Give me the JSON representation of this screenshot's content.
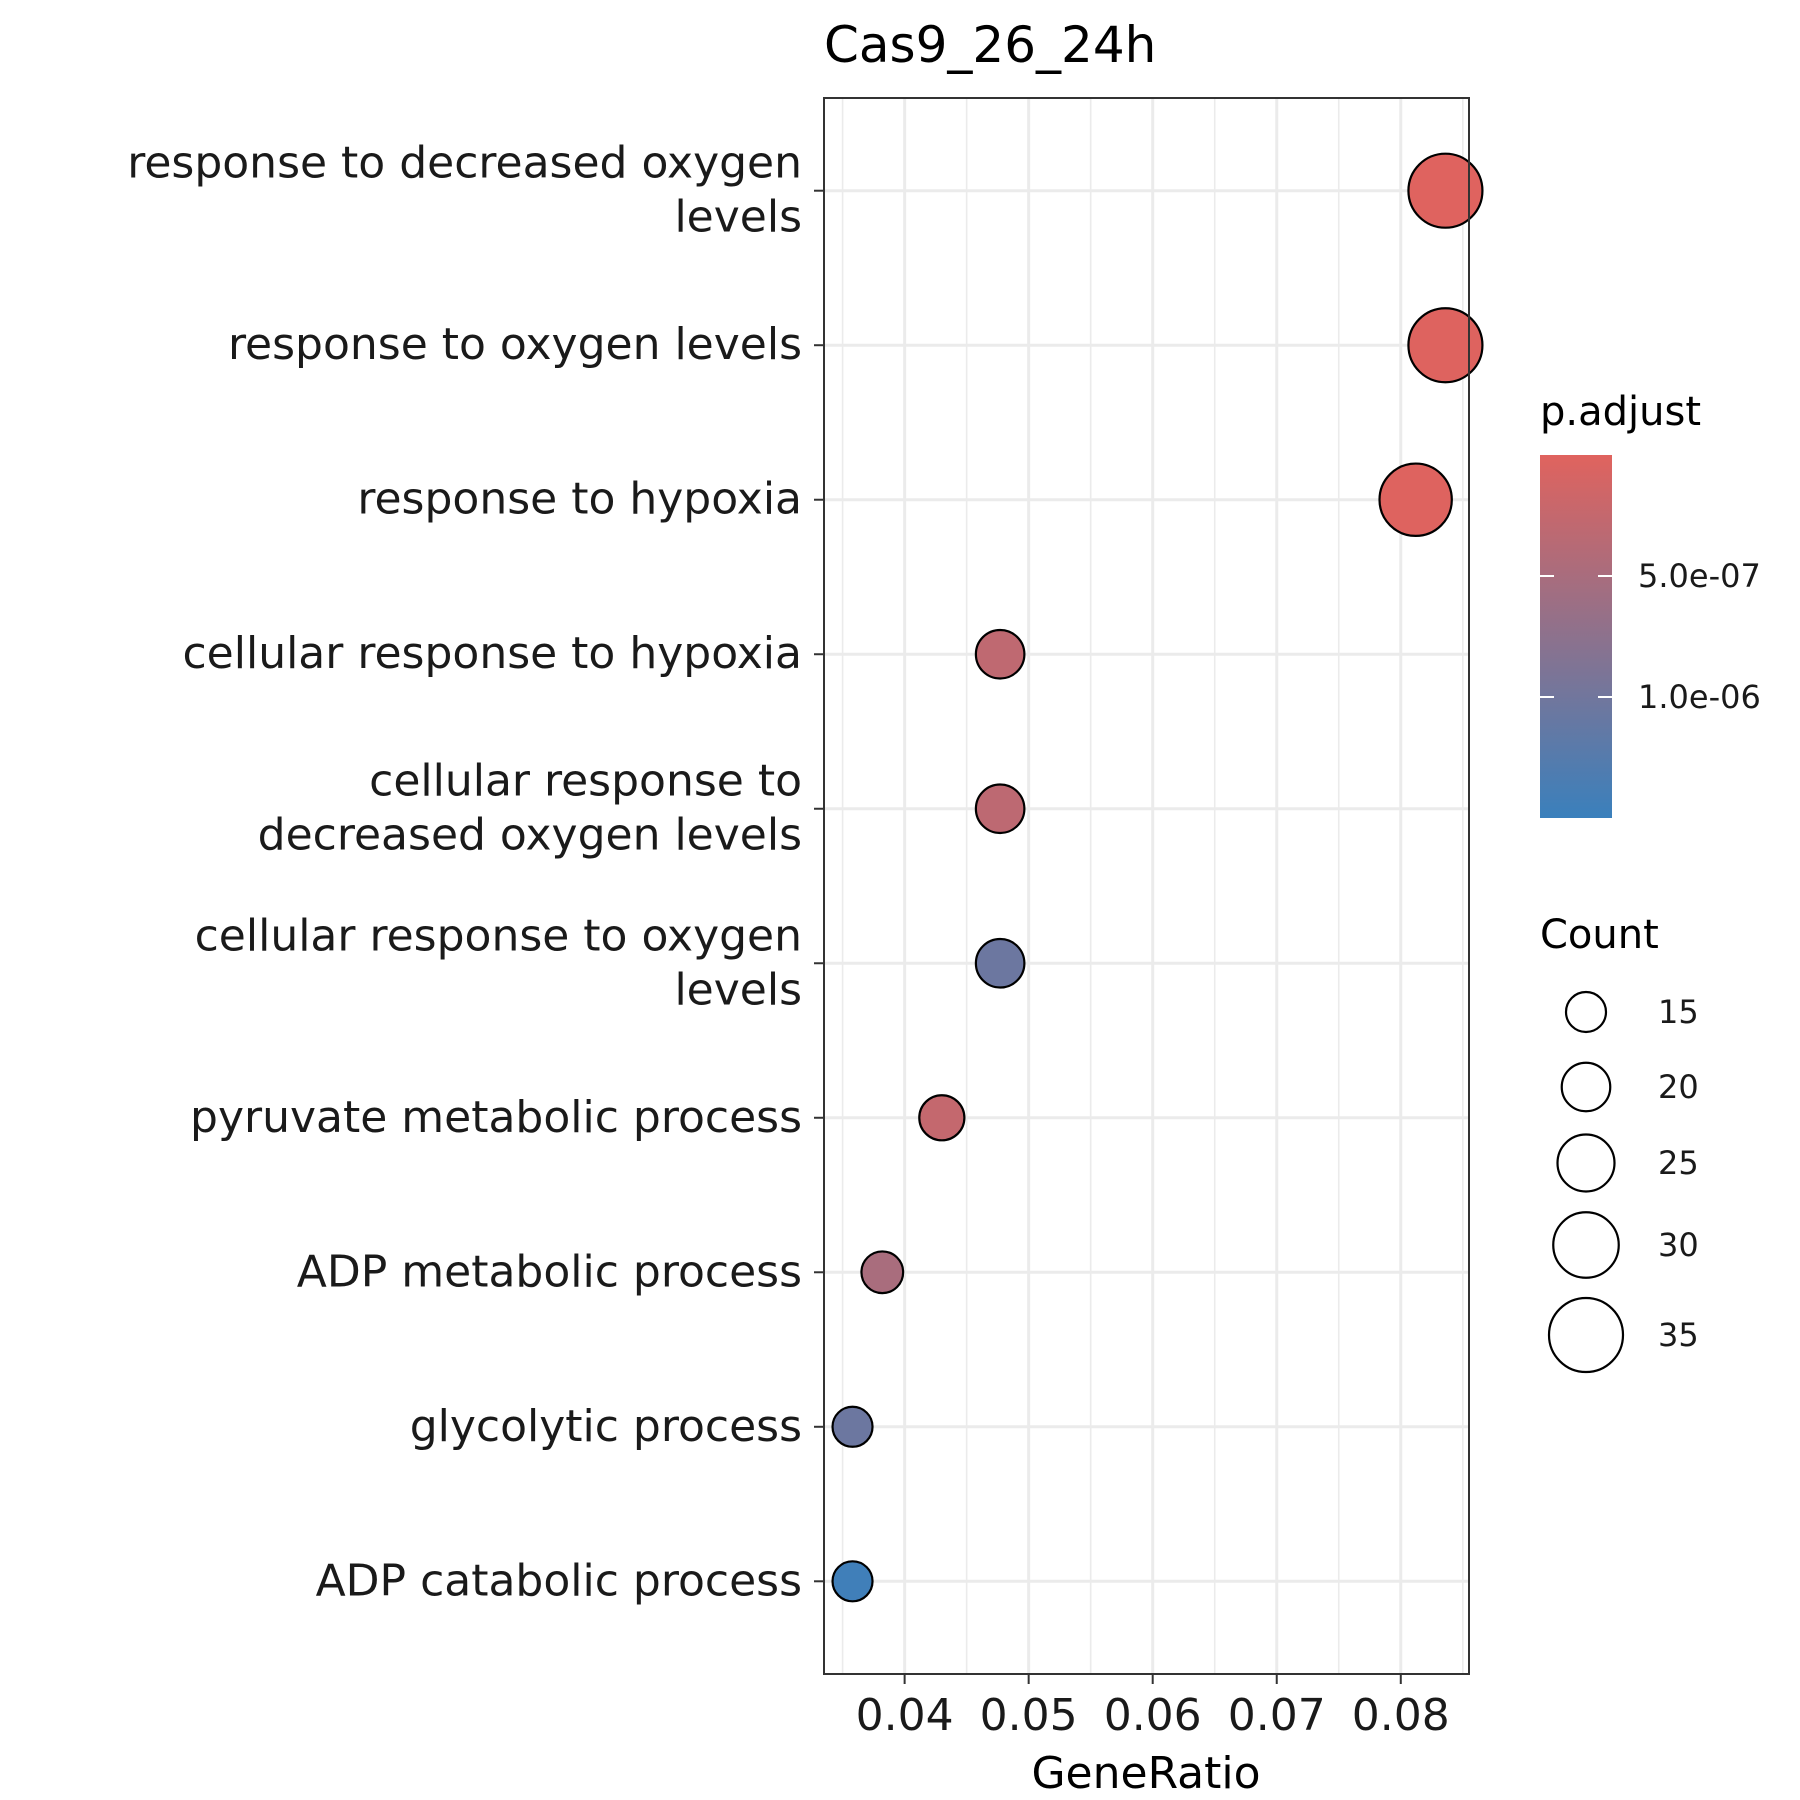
{
  "chart_data": {
    "type": "scatter",
    "title": "Cas9_26_24h",
    "xlabel": "GeneRatio",
    "ylabel": "",
    "xlim": [
      0.0335,
      0.0855
    ],
    "xticks": [
      "0.04",
      "0.05",
      "0.06",
      "0.07",
      "0.08"
    ],
    "xtick_values": [
      0.04,
      0.05,
      0.06,
      0.07,
      0.08
    ],
    "grid": true,
    "categories": [
      [
        "response to decreased oxygen",
        "levels"
      ],
      [
        "response to oxygen levels"
      ],
      [
        "response to hypoxia"
      ],
      [
        "cellular response to hypoxia"
      ],
      [
        "cellular response to",
        "decreased oxygen levels"
      ],
      [
        "cellular response to oxygen",
        "levels"
      ],
      [
        "pyruvate metabolic process"
      ],
      [
        "ADP metabolic process"
      ],
      [
        "glycolytic process"
      ],
      [
        "ADP catabolic process"
      ]
    ],
    "points": [
      {
        "gene_ratio": 0.0836,
        "count": 35,
        "p_adjust": 1e-08
      },
      {
        "gene_ratio": 0.0836,
        "count": 35,
        "p_adjust": 1.5e-08
      },
      {
        "gene_ratio": 0.0812,
        "count": 34,
        "p_adjust": 2e-08
      },
      {
        "gene_ratio": 0.0477,
        "count": 20,
        "p_adjust": 3e-07
      },
      {
        "gene_ratio": 0.0477,
        "count": 20,
        "p_adjust": 3.2e-07
      },
      {
        "gene_ratio": 0.0477,
        "count": 20,
        "p_adjust": 1.05e-06
      },
      {
        "gene_ratio": 0.043,
        "count": 18,
        "p_adjust": 2.5e-07
      },
      {
        "gene_ratio": 0.0382,
        "count": 16,
        "p_adjust": 5e-07
      },
      {
        "gene_ratio": 0.0358,
        "count": 15,
        "p_adjust": 1.05e-06
      },
      {
        "gene_ratio": 0.0358,
        "count": 15,
        "p_adjust": 1.45e-06
      }
    ],
    "color_legend": {
      "title": "p.adjust",
      "range": [
        0.0,
        1.5e-06
      ],
      "low_color": "#e0635e",
      "high_color": "#3a80bc",
      "breaks": [
        5e-07,
        1e-06
      ],
      "labels": [
        "5.0e-07",
        "1.0e-06"
      ]
    },
    "size_legend": {
      "title": "Count",
      "range": [
        15,
        35
      ],
      "values": [
        15,
        20,
        25,
        30,
        35
      ],
      "labels": [
        "15",
        "20",
        "25",
        "30",
        "35"
      ]
    },
    "legend_position": "right"
  }
}
